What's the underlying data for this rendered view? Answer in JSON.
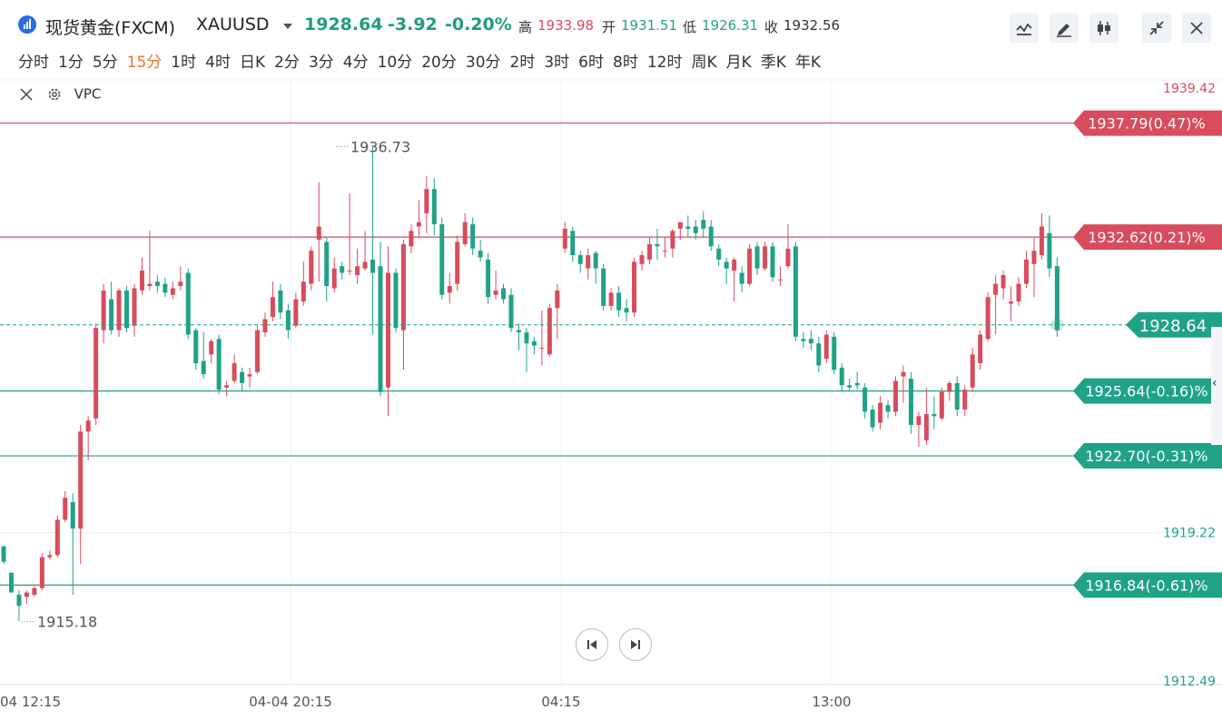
{
  "header": {
    "name": "现货黄金(FXCM)",
    "symbol": "XAUUSD",
    "price": "1928.64",
    "change": "-3.92",
    "change_pct": "-0.20%",
    "high_label": "高",
    "high": "1933.98",
    "open_label": "开",
    "open": "1931.51",
    "low_label": "低",
    "low": "1926.31",
    "close_label": "收",
    "close": "1932.56"
  },
  "toolbar_icons": [
    "line-chart-icon",
    "draw-pen-icon",
    "candlestick-icon",
    "shrink-icon",
    "close-icon"
  ],
  "timeframes": [
    "分时",
    "1分",
    "5分",
    "15分",
    "1时",
    "4时",
    "日K",
    "2分",
    "3分",
    "4分",
    "10分",
    "20分",
    "30分",
    "2时",
    "3时",
    "6时",
    "8时",
    "12时",
    "周K",
    "月K",
    "季K",
    "年K"
  ],
  "active_timeframe": "15分",
  "indicator": {
    "name": "VPC"
  },
  "colors": {
    "up": "#d84c5d",
    "down": "#20a287",
    "accent": "#e8742b"
  },
  "chart_data": {
    "type": "candlestick",
    "ylim": [
      1912.49,
      1939.42
    ],
    "y_ticks": [
      "1939.42",
      "1919.22",
      "1912.49"
    ],
    "x_ticks": [
      "04 12:15",
      "04-04 20:15",
      "04:15",
      "13:00"
    ],
    "last_price": 1928.64,
    "max_label": "1936.73",
    "min_label": "1915.18",
    "price_lines": [
      {
        "price": 1937.79,
        "label": "1937.79(0.47)%",
        "color": "#d84c5d"
      },
      {
        "price": 1932.62,
        "label": "1932.62(0.21)%",
        "color": "#d84c5d"
      },
      {
        "price": 1925.64,
        "label": "1925.64(-0.16)%",
        "color": "#20a287"
      },
      {
        "price": 1922.7,
        "label": "1922.70(-0.31)%",
        "color": "#20a287"
      },
      {
        "price": 1916.84,
        "label": "1916.84(-0.61)%",
        "color": "#20a287"
      }
    ],
    "candles": [
      [
        1918.6,
        1917.9,
        1918.6,
        1917.8
      ],
      [
        1917.4,
        1916.5,
        1917.4,
        1916.5
      ],
      [
        1916.4,
        1915.9,
        1916.6,
        1915.2
      ],
      [
        1916.3,
        1916.5,
        1916.6,
        1916.0
      ],
      [
        1916.4,
        1916.7,
        1916.8,
        1916.3
      ],
      [
        1916.7,
        1918.1,
        1918.3,
        1916.6
      ],
      [
        1918.1,
        1918.2,
        1918.4,
        1918.0
      ],
      [
        1918.2,
        1919.8,
        1920.0,
        1918.1
      ],
      [
        1919.8,
        1920.8,
        1921.1,
        1919.7
      ],
      [
        1920.6,
        1919.4,
        1921.0,
        1916.4
      ],
      [
        1919.4,
        1923.8,
        1924.1,
        1917.8
      ],
      [
        1923.8,
        1924.3,
        1924.5,
        1922.5
      ],
      [
        1924.4,
        1928.5,
        1928.7,
        1924.1
      ],
      [
        1928.4,
        1930.2,
        1930.5,
        1927.8
      ],
      [
        1929.8,
        1928.4,
        1930.6,
        1928.2
      ],
      [
        1928.4,
        1930.2,
        1930.3,
        1928.1
      ],
      [
        1930.2,
        1928.5,
        1930.4,
        1928.3
      ],
      [
        1928.6,
        1930.3,
        1930.5,
        1928.1
      ],
      [
        1930.2,
        1931.1,
        1931.7,
        1930.0
      ],
      [
        1930.4,
        1930.5,
        1932.9,
        1930.2
      ],
      [
        1930.6,
        1930.4,
        1930.9,
        1930.1
      ],
      [
        1930.5,
        1930.1,
        1930.8,
        1929.9
      ],
      [
        1930.0,
        1930.3,
        1930.6,
        1929.8
      ],
      [
        1930.4,
        1930.6,
        1931.3,
        1930.2
      ],
      [
        1931.0,
        1928.2,
        1931.2,
        1928.0
      ],
      [
        1928.4,
        1926.9,
        1928.5,
        1926.6
      ],
      [
        1927.0,
        1926.4,
        1928.3,
        1926.2
      ],
      [
        1927.3,
        1927.9,
        1928.0,
        1926.9
      ],
      [
        1928.0,
        1925.7,
        1928.2,
        1925.5
      ],
      [
        1925.8,
        1925.9,
        1926.1,
        1925.4
      ],
      [
        1926.1,
        1926.9,
        1927.3,
        1926.0
      ],
      [
        1926.5,
        1926.0,
        1926.7,
        1925.6
      ],
      [
        1926.3,
        1926.4,
        1926.7,
        1925.8
      ],
      [
        1926.5,
        1928.4,
        1928.6,
        1926.4
      ],
      [
        1928.3,
        1928.9,
        1929.2,
        1928.1
      ],
      [
        1929.0,
        1929.9,
        1930.6,
        1928.8
      ],
      [
        1930.2,
        1929.2,
        1930.5,
        1928.9
      ],
      [
        1929.3,
        1928.4,
        1929.6,
        1928.0
      ],
      [
        1928.6,
        1929.8,
        1930.1,
        1928.5
      ],
      [
        1929.7,
        1930.6,
        1931.5,
        1929.5
      ],
      [
        1930.5,
        1932.0,
        1932.2,
        1930.2
      ],
      [
        1932.5,
        1933.1,
        1935.1,
        1930.6
      ],
      [
        1932.4,
        1930.4,
        1932.6,
        1929.7
      ],
      [
        1930.3,
        1931.2,
        1931.7,
        1930.1
      ],
      [
        1931.3,
        1931.0,
        1931.5,
        1930.7
      ],
      [
        1931.1,
        1931.1,
        1934.6,
        1930.9
      ],
      [
        1930.9,
        1931.3,
        1932.1,
        1930.5
      ],
      [
        1931.2,
        1931.5,
        1932.9,
        1931.1
      ],
      [
        1931.6,
        1931.0,
        1936.7,
        1928.2
      ],
      [
        1931.3,
        1925.6,
        1932.4,
        1925.4
      ],
      [
        1925.8,
        1931.0,
        1932.2,
        1924.5
      ],
      [
        1931.0,
        1928.5,
        1931.2,
        1928.3
      ],
      [
        1928.4,
        1932.3,
        1932.5,
        1926.6
      ],
      [
        1932.2,
        1932.9,
        1933.2,
        1931.9
      ],
      [
        1933.1,
        1933.3,
        1934.3,
        1932.6
      ],
      [
        1933.7,
        1934.8,
        1935.4,
        1932.8
      ],
      [
        1934.8,
        1933.2,
        1935.3,
        1932.7
      ],
      [
        1933.2,
        1930.0,
        1933.5,
        1929.8
      ],
      [
        1930.1,
        1930.4,
        1931.0,
        1929.6
      ],
      [
        1930.5,
        1932.4,
        1932.7,
        1930.2
      ],
      [
        1932.3,
        1933.3,
        1933.7,
        1932.2
      ],
      [
        1933.2,
        1932.1,
        1933.5,
        1931.8
      ],
      [
        1932.0,
        1931.7,
        1932.5,
        1931.5
      ],
      [
        1931.6,
        1929.9,
        1931.9,
        1929.6
      ],
      [
        1930.0,
        1930.2,
        1931.1,
        1929.8
      ],
      [
        1930.3,
        1929.8,
        1930.5,
        1929.6
      ],
      [
        1930.0,
        1928.5,
        1930.3,
        1928.3
      ],
      [
        1928.4,
        1928.3,
        1928.7,
        1927.5
      ],
      [
        1928.3,
        1927.8,
        1928.5,
        1926.5
      ],
      [
        1927.9,
        1927.7,
        1928.1,
        1927.3
      ],
      [
        1927.6,
        1927.6,
        1929.3,
        1926.8
      ],
      [
        1927.3,
        1929.4,
        1929.6,
        1927.2
      ],
      [
        1929.4,
        1930.2,
        1930.5,
        1928.0
      ],
      [
        1932.1,
        1933.0,
        1933.3,
        1931.9
      ],
      [
        1932.9,
        1931.8,
        1933.1,
        1931.5
      ],
      [
        1931.8,
        1931.4,
        1932.0,
        1931.0
      ],
      [
        1931.2,
        1931.8,
        1932.1,
        1930.7
      ],
      [
        1931.9,
        1931.2,
        1932.0,
        1930.5
      ],
      [
        1931.2,
        1929.5,
        1931.4,
        1929.3
      ],
      [
        1929.5,
        1930.1,
        1930.3,
        1929.3
      ],
      [
        1930.1,
        1929.3,
        1930.4,
        1929.0
      ],
      [
        1929.4,
        1929.2,
        1929.8,
        1928.8
      ],
      [
        1929.2,
        1931.5,
        1931.7,
        1929.0
      ],
      [
        1931.4,
        1931.8,
        1932.0,
        1931.1
      ],
      [
        1931.6,
        1932.3,
        1932.6,
        1931.4
      ],
      [
        1932.3,
        1932.2,
        1933.0,
        1931.6
      ],
      [
        1932.0,
        1932.0,
        1932.6,
        1931.7
      ],
      [
        1932.1,
        1932.9,
        1933.0,
        1931.7
      ],
      [
        1933.0,
        1933.3,
        1933.3,
        1932.5
      ],
      [
        1933.1,
        1933.0,
        1933.6,
        1932.6
      ],
      [
        1933.1,
        1932.8,
        1933.4,
        1932.5
      ],
      [
        1933.4,
        1933.0,
        1933.8,
        1932.6
      ],
      [
        1933.1,
        1932.2,
        1933.4,
        1932.0
      ],
      [
        1932.1,
        1931.6,
        1932.3,
        1931.3
      ],
      [
        1931.5,
        1931.2,
        1931.7,
        1930.5
      ],
      [
        1931.1,
        1931.6,
        1931.7,
        1929.7
      ],
      [
        1931.0,
        1930.5,
        1931.3,
        1930.1
      ],
      [
        1930.5,
        1932.1,
        1932.3,
        1930.4
      ],
      [
        1932.2,
        1931.2,
        1932.4,
        1930.9
      ],
      [
        1931.2,
        1932.2,
        1932.4,
        1931.1
      ],
      [
        1932.2,
        1930.8,
        1932.4,
        1930.6
      ],
      [
        1930.7,
        1930.7,
        1931.3,
        1930.4
      ],
      [
        1931.3,
        1932.1,
        1933.2,
        1931.2
      ],
      [
        1932.2,
        1928.1,
        1932.4,
        1927.9
      ],
      [
        1928.0,
        1927.9,
        1928.3,
        1927.6
      ],
      [
        1928.0,
        1927.8,
        1928.4,
        1927.5
      ],
      [
        1927.8,
        1926.8,
        1928.1,
        1926.5
      ],
      [
        1927.1,
        1928.2,
        1928.4,
        1926.9
      ],
      [
        1928.1,
        1926.6,
        1928.3,
        1926.4
      ],
      [
        1926.7,
        1925.9,
        1926.9,
        1925.6
      ],
      [
        1925.9,
        1925.8,
        1926.2,
        1925.6
      ],
      [
        1926.0,
        1925.9,
        1926.5,
        1925.7
      ],
      [
        1925.8,
        1924.7,
        1926.0,
        1924.4
      ],
      [
        1924.8,
        1924.0,
        1925.0,
        1923.8
      ],
      [
        1924.2,
        1925.1,
        1925.4,
        1923.9
      ],
      [
        1925.0,
        1924.7,
        1925.2,
        1924.4
      ],
      [
        1924.7,
        1926.1,
        1926.3,
        1924.5
      ],
      [
        1926.3,
        1926.5,
        1926.8,
        1925.1
      ],
      [
        1926.2,
        1924.1,
        1926.5,
        1923.7
      ],
      [
        1924.1,
        1924.5,
        1924.7,
        1923.1
      ],
      [
        1923.4,
        1924.6,
        1925.8,
        1923.2
      ],
      [
        1924.6,
        1924.5,
        1925.4,
        1923.9
      ],
      [
        1924.4,
        1925.6,
        1925.8,
        1924.3
      ],
      [
        1925.6,
        1926.0,
        1926.1,
        1925.2
      ],
      [
        1926.0,
        1924.8,
        1926.3,
        1924.5
      ],
      [
        1924.8,
        1925.7,
        1925.9,
        1924.5
      ],
      [
        1925.8,
        1927.3,
        1927.6,
        1925.6
      ],
      [
        1926.9,
        1928.2,
        1928.4,
        1926.6
      ],
      [
        1928.0,
        1929.9,
        1930.1,
        1927.9
      ],
      [
        1930.0,
        1930.5,
        1930.9,
        1928.2
      ],
      [
        1930.3,
        1930.9,
        1931.1,
        1929.8
      ],
      [
        1929.6,
        1929.7,
        1930.4,
        1928.8
      ],
      [
        1929.7,
        1930.5,
        1930.8,
        1929.5
      ],
      [
        1930.5,
        1931.6,
        1932.0,
        1930.3
      ],
      [
        1931.4,
        1932.0,
        1932.6,
        1929.9
      ],
      [
        1931.8,
        1933.1,
        1933.7,
        1931.6
      ],
      [
        1932.8,
        1931.2,
        1933.6,
        1930.8
      ],
      [
        1931.3,
        1928.4,
        1931.7,
        1928.1
      ]
    ]
  }
}
